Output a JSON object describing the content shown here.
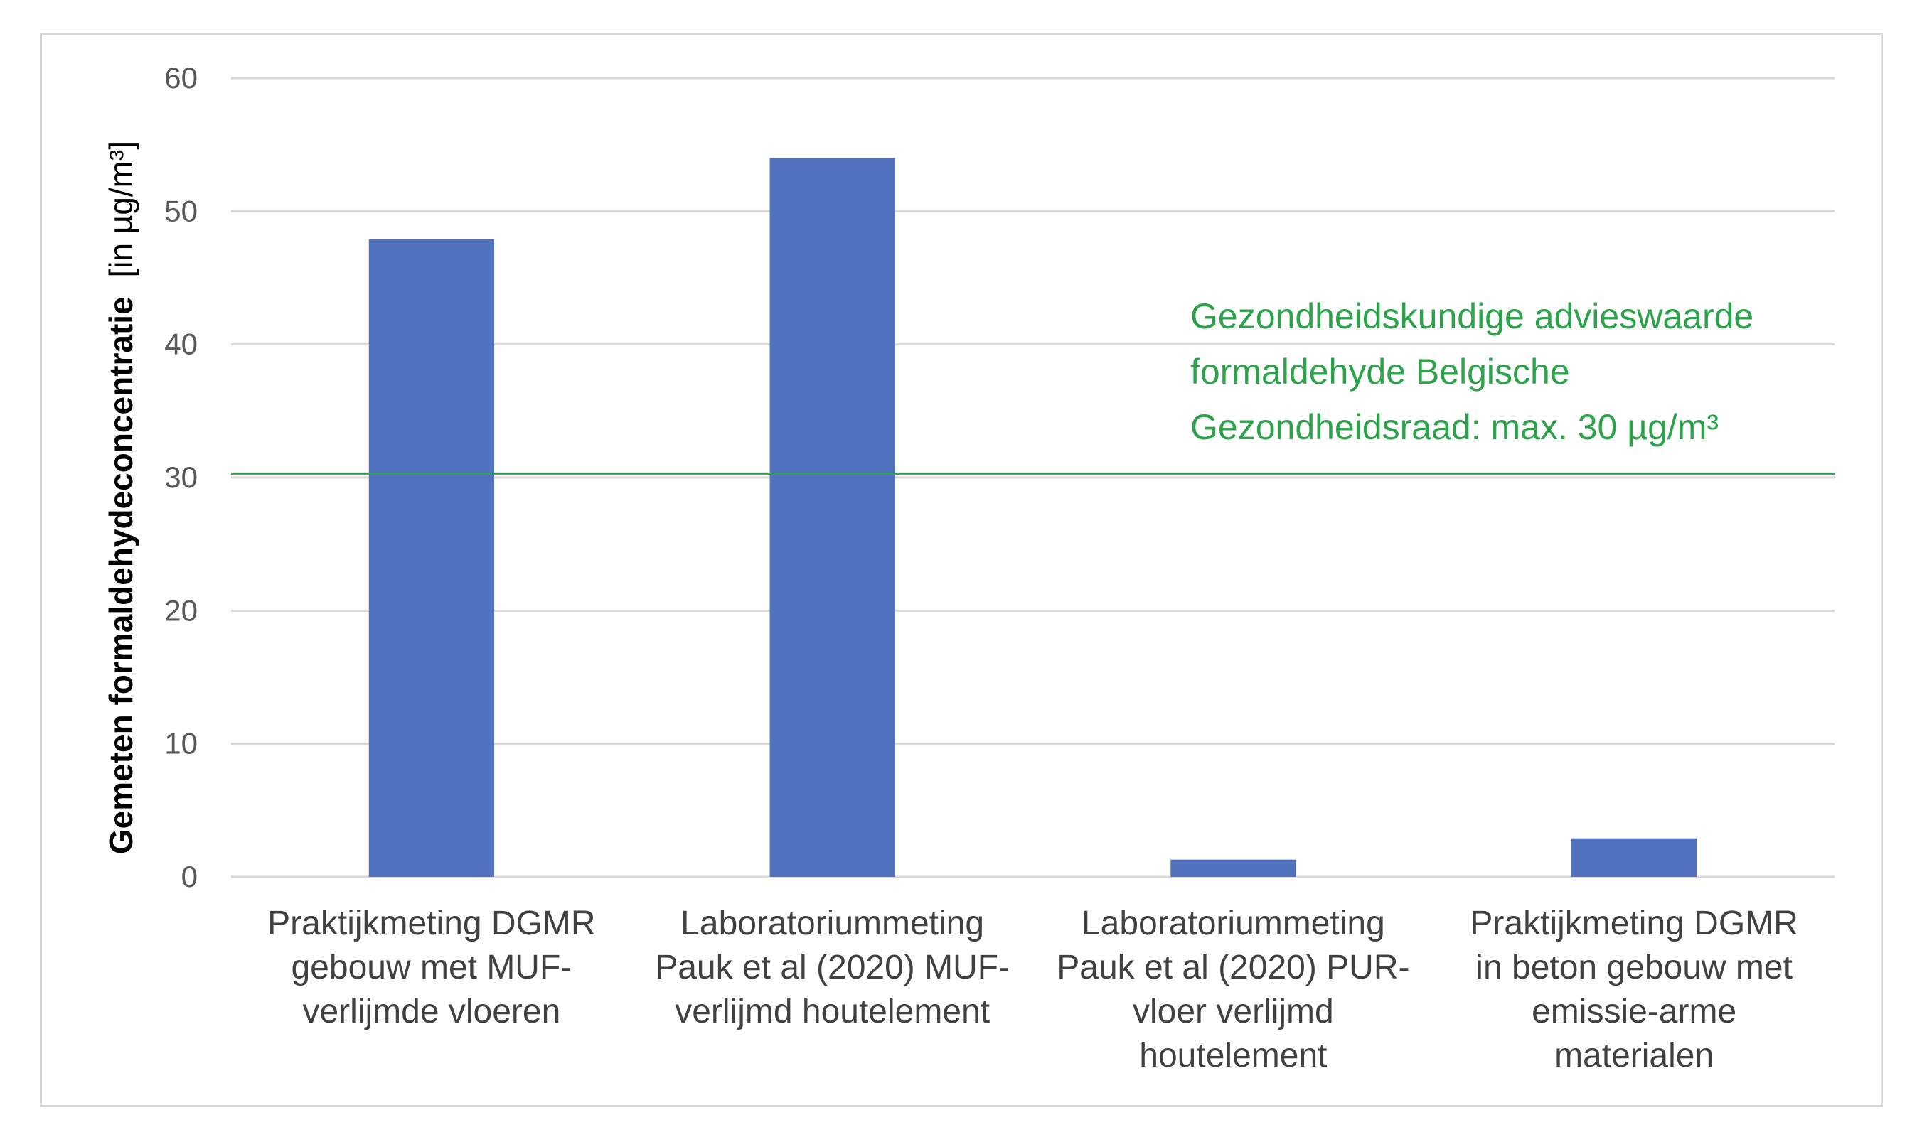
{
  "chart_data": {
    "type": "bar",
    "categories": [
      [
        "Praktijkmeting DGMR",
        "gebouw met MUF-",
        "verlijmde vloeren"
      ],
      [
        "Laboratoriummeting",
        "Pauk et al (2020) MUF-",
        "verlijmd houtelement"
      ],
      [
        "Laboratoriummeting",
        "Pauk et al (2020) PUR-",
        "vloer verlijmd",
        "houtelement"
      ],
      [
        "Praktijkmeting DGMR",
        "in beton gebouw met",
        "emissie-arme",
        "materialen"
      ]
    ],
    "values": [
      47.9,
      54,
      1.3,
      2.9
    ],
    "ylabel_bold": "Gemeten formaldehydeconcentratie",
    "ylabel_unit": "[in µg/m³]",
    "ylim": [
      0,
      60
    ],
    "yticks": [
      "0",
      "10",
      "20",
      "30",
      "40",
      "50",
      "60"
    ],
    "grid": true,
    "reference_line": {
      "value": 30.3,
      "label": [
        "Gezondheidskundige advieswaarde",
        "formaldehyde Belgische",
        "Gezondheidsraad: max. 30 µg/m³"
      ]
    },
    "colors": {
      "bar": "#4f71be",
      "reference": "#2ca34a",
      "grid": "#d9d9d9"
    }
  }
}
